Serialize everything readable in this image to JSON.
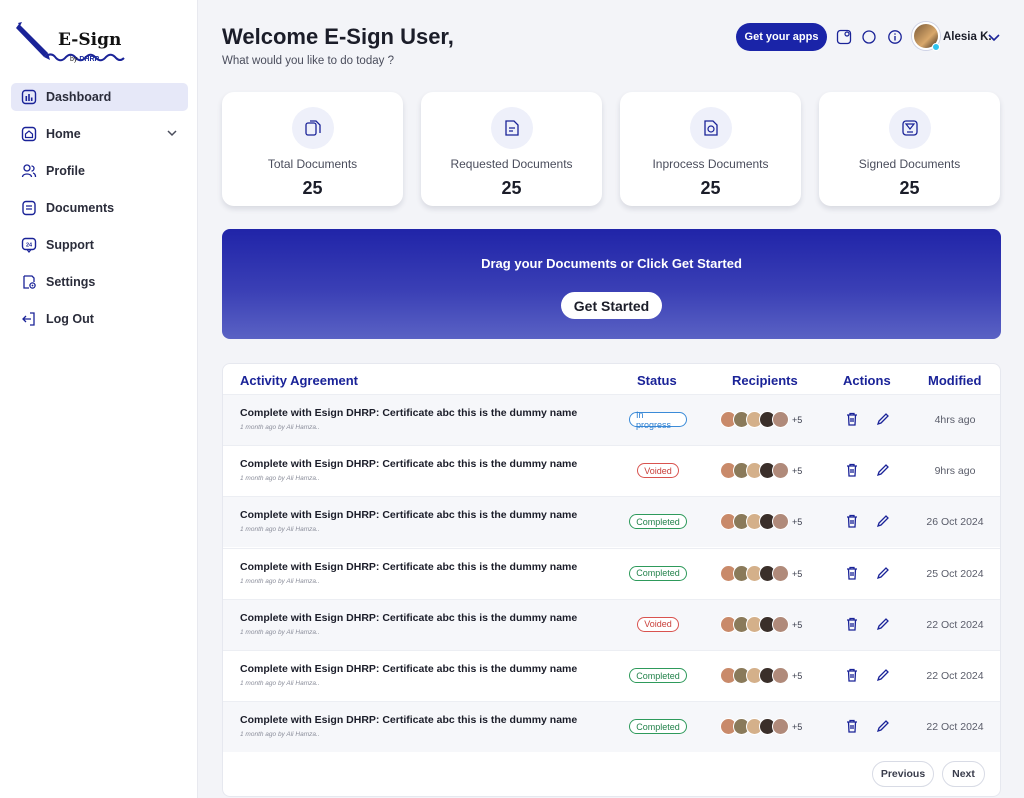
{
  "brand": {
    "title": "E-Sign",
    "sub_prefix": "by",
    "sub_name": "DHRP"
  },
  "sidebar": {
    "items": [
      {
        "label": "Dashboard",
        "icon": "dashboard-icon",
        "active": true
      },
      {
        "label": "Home",
        "icon": "home-icon"
      },
      {
        "label": "Profile",
        "icon": "profile-icon"
      },
      {
        "label": "Documents",
        "icon": "documents-icon"
      },
      {
        "label": "Support",
        "icon": "support-icon"
      },
      {
        "label": "Settings",
        "icon": "settings-icon"
      },
      {
        "label": "Log Out",
        "icon": "logout-icon"
      }
    ]
  },
  "header": {
    "welcome": "Welcome E-Sign User,",
    "subtitle": "What would you like to do today ?",
    "apps_button": "Get your apps",
    "user_name": "Alesia K."
  },
  "stats": [
    {
      "label": "Total Documents",
      "value": "25"
    },
    {
      "label": "Requested Documents",
      "value": "25"
    },
    {
      "label": "Inprocess Documents",
      "value": "25"
    },
    {
      "label": "Signed Documents",
      "value": "25"
    }
  ],
  "banner": {
    "text": "Drag your Documents or Click Get Started",
    "button": "Get Started"
  },
  "table": {
    "columns": [
      "Activity Agreement",
      "Status",
      "Recipients",
      "Actions",
      "Modified"
    ],
    "rows": [
      {
        "name": "Complete with Esign DHRP: Certificate abc this is the dummy name",
        "meta": "1 month ago by Ali Hamza..",
        "status": "In progress",
        "extra": "+5",
        "modified": "4hrs ago"
      },
      {
        "name": "Complete with Esign DHRP: Certificate abc this is the dummy name",
        "meta": "1 month ago by Ali Hamza..",
        "status": "Voided",
        "extra": "+5",
        "modified": "9hrs ago"
      },
      {
        "name": "Complete with Esign DHRP: Certificate abc this is the dummy name",
        "meta": "1 month ago by Ali Hamza..",
        "status": "Completed",
        "extra": "+5",
        "modified": "26 Oct 2024"
      },
      {
        "name": "Complete with Esign DHRP: Certificate abc this is the dummy name",
        "meta": "1 month ago by Ali Hamza..",
        "status": "Completed",
        "extra": "+5",
        "modified": "25 Oct 2024"
      },
      {
        "name": "Complete with Esign DHRP: Certificate abc this is the dummy name",
        "meta": "1 month ago by Ali Hamza..",
        "status": "Voided",
        "extra": "+5",
        "modified": "22 Oct 2024"
      },
      {
        "name": "Complete with Esign DHRP: Certificate abc this is the dummy name",
        "meta": "1 month ago by Ali Hamza..",
        "status": "Completed",
        "extra": "+5",
        "modified": "22 Oct 2024"
      },
      {
        "name": "Complete with Esign DHRP: Certificate abc this is the dummy name",
        "meta": "1 month ago by Ali Hamza..",
        "status": "Completed",
        "extra": "+5",
        "modified": "22 Oct 2024"
      }
    ]
  },
  "pagination": {
    "previous": "Previous",
    "next": "Next"
  },
  "colors": {
    "primary": "#1a24a8",
    "inprogress": "#2d7fd1",
    "voided": "#c9403b",
    "completed": "#23824b"
  }
}
